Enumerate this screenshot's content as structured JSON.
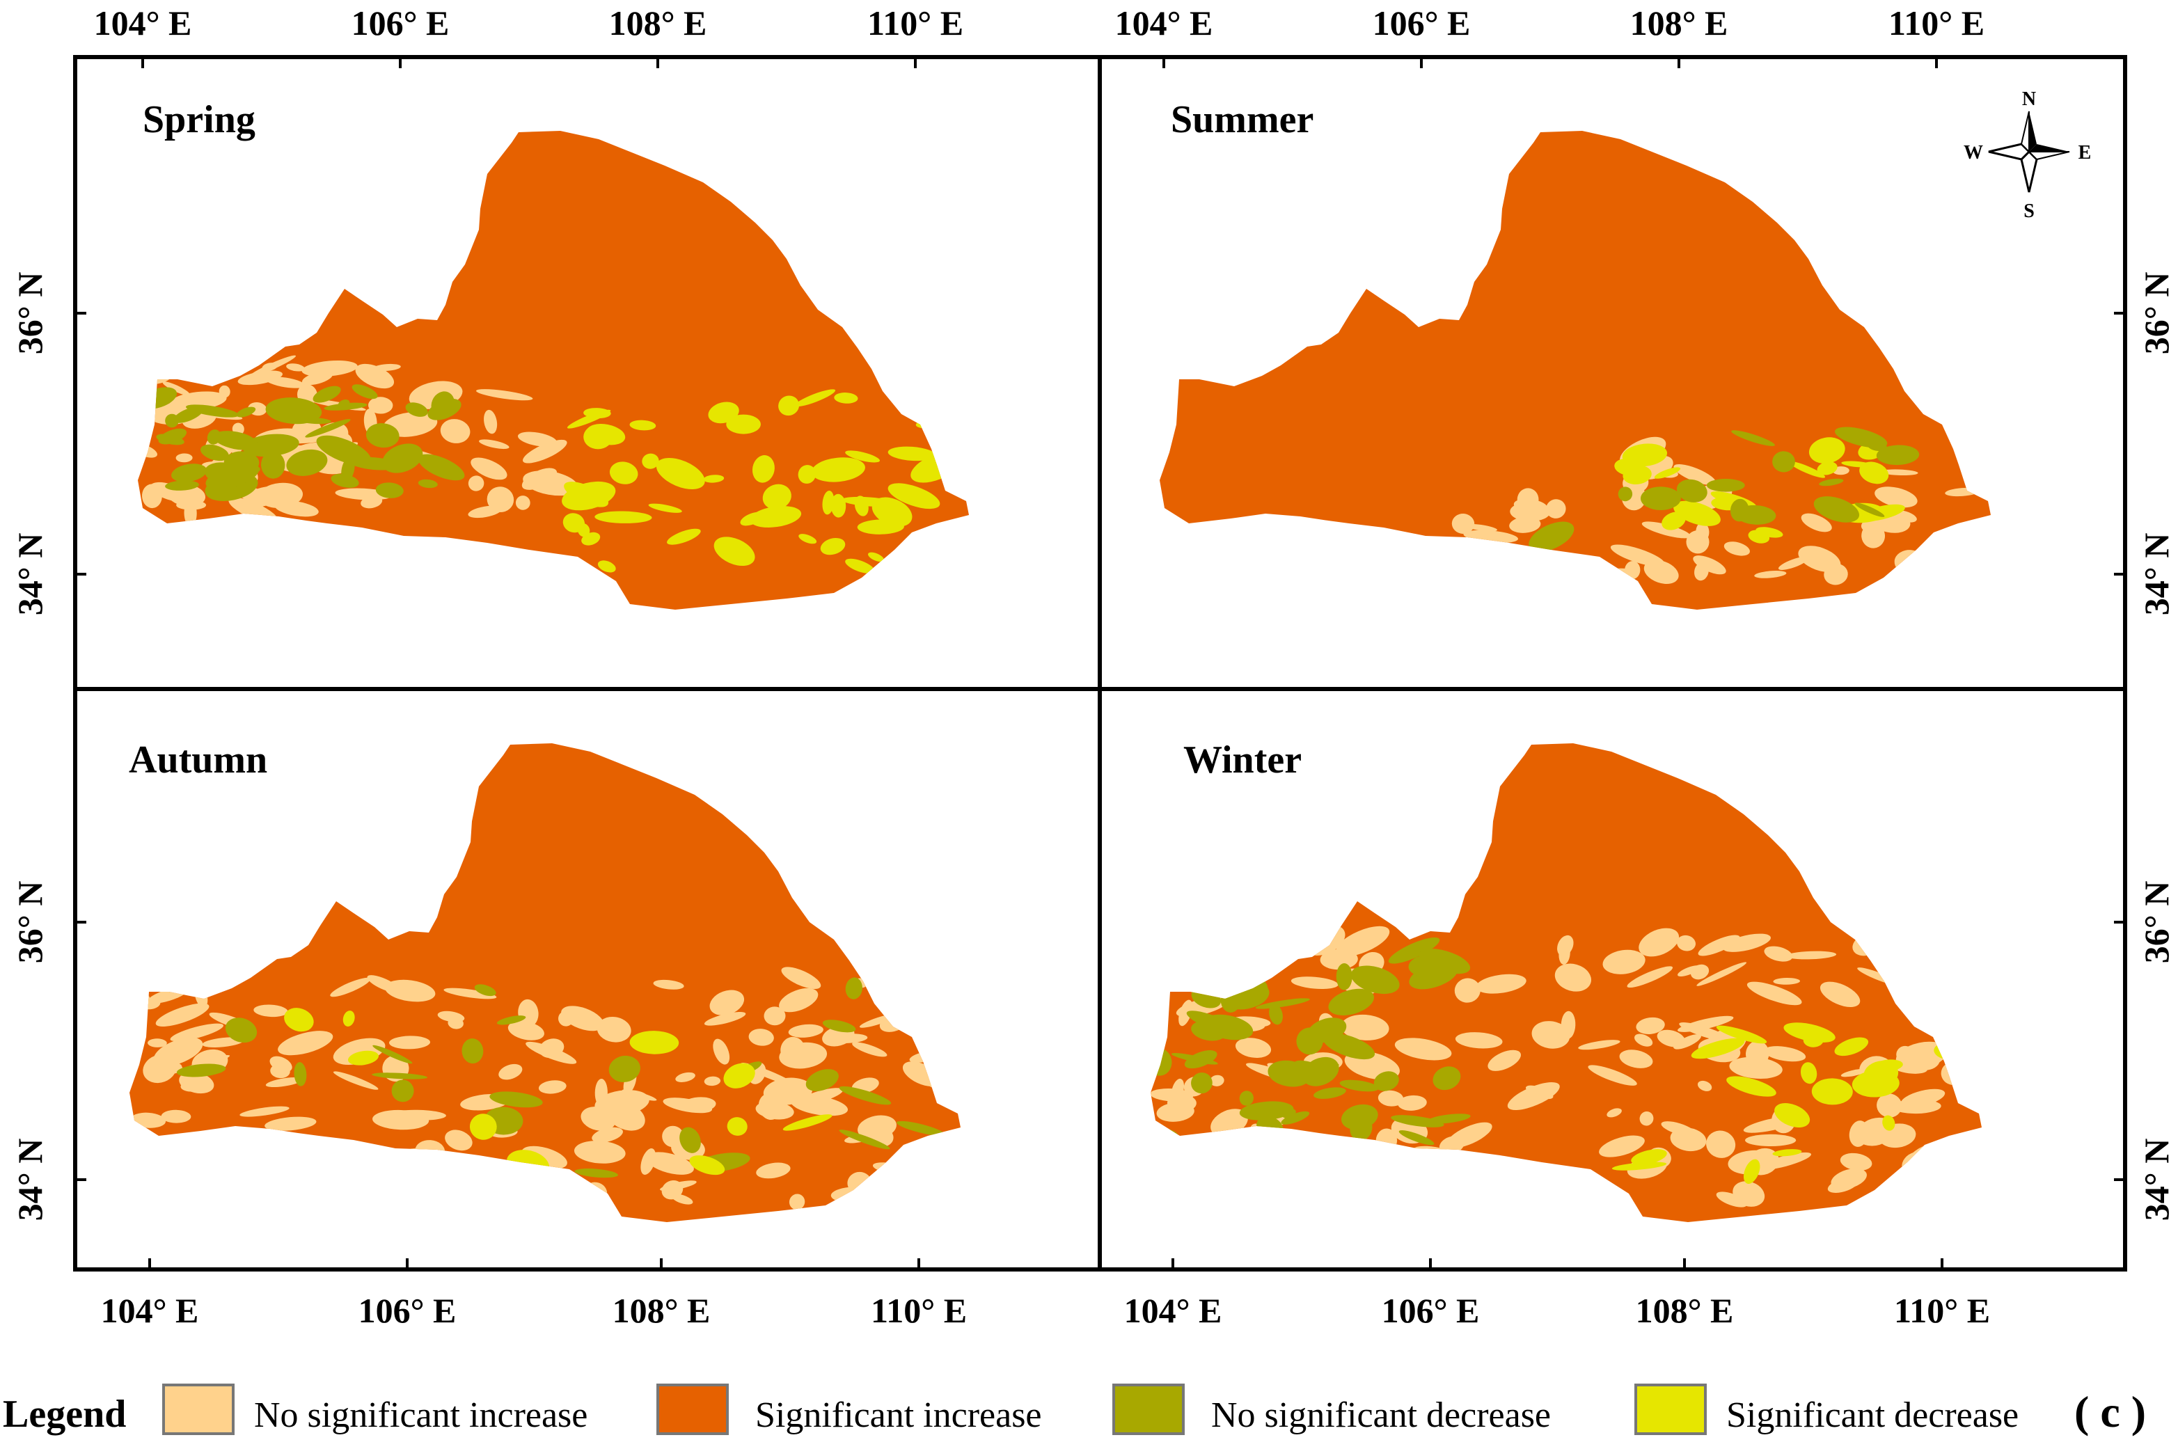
{
  "panels": [
    {
      "title": "Spring"
    },
    {
      "title": "Summer"
    },
    {
      "title": "Autumn"
    },
    {
      "title": "Winter"
    }
  ],
  "lon_ticks": [
    "104° E",
    "106° E",
    "108° E",
    "110° E"
  ],
  "lat_ticks": [
    "36° N",
    "34° N"
  ],
  "compass": {
    "n": "N",
    "s": "S",
    "e": "E",
    "w": "W"
  },
  "legend": {
    "title": "Legend",
    "items": [
      {
        "label": "No significant increase",
        "color": "#FFD28C"
      },
      {
        "label": "Significant increase",
        "color": "#E66100"
      },
      {
        "label": "No significant decrease",
        "color": "#A8A800"
      },
      {
        "label": "Significant decrease",
        "color": "#E6E600"
      }
    ]
  },
  "figure_label": "( c )",
  "colors": {
    "significant_increase": "#E66100",
    "no_significant_increase": "#FFD28C",
    "no_significant_decrease": "#A8A800",
    "significant_decrease": "#E6E600"
  }
}
